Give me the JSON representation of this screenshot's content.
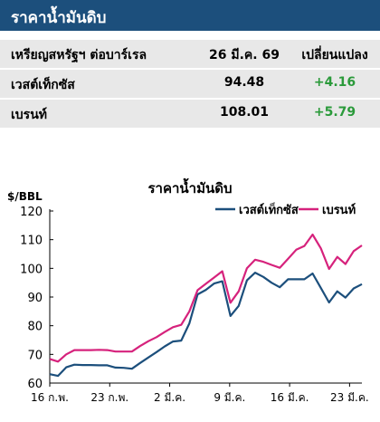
{
  "header": {
    "title": "ราคาน้ำมันดิบ"
  },
  "table": {
    "columns": [
      "เหรียญสหรัฐฯ ต่อบาร์เรล",
      "26 มี.ค. 69",
      "เปลี่ยนแปลง"
    ],
    "rows": [
      {
        "name": "เวสต์เท็กซัส",
        "value": "94.48",
        "change": "+4.16"
      },
      {
        "name": "เบรนท์",
        "value": "108.01",
        "change": "+5.79"
      }
    ]
  },
  "chart_data": {
    "type": "line",
    "title": "ราคาน้ำมันดิบ",
    "ylabel": "$/BBL",
    "ylim": [
      60,
      120
    ],
    "yticks": [
      60,
      70,
      80,
      90,
      100,
      110,
      120
    ],
    "x_tick_labels": [
      "16 ก.พ.",
      "23 ก.พ.",
      "2 มี.ค.",
      "9 มี.ค.",
      "16 มี.ค.",
      "23 มี.ค."
    ],
    "legend_position": "top-right",
    "series": [
      {
        "name": "เวสต์เท็กซัส",
        "color": "#1c4f7c",
        "x": [
          0,
          1,
          2,
          3,
          4,
          5,
          6,
          7,
          8,
          9,
          10,
          11,
          12,
          13,
          14,
          15,
          16,
          17,
          18,
          19,
          20,
          21,
          22,
          23,
          24,
          25,
          26,
          27,
          28,
          29,
          30,
          31,
          32,
          33,
          34,
          35,
          36,
          37,
          38
        ],
        "values": [
          63.1,
          62.5,
          65.5,
          66.4,
          66.3,
          66.3,
          66.2,
          66.2,
          65.4,
          65.3,
          65.0,
          67.0,
          68.9,
          70.8,
          72.8,
          74.5,
          74.8,
          80.8,
          90.9,
          92.5,
          94.7,
          95.5,
          83.4,
          86.9,
          95.8,
          98.5,
          97.0,
          95.0,
          93.4,
          96.2,
          96.2,
          96.2,
          98.2,
          93.2,
          88.1,
          92.0,
          89.8,
          93.0,
          94.48
        ]
      },
      {
        "name": "เบรนท์",
        "color": "#d6227c",
        "x": [
          0,
          1,
          2,
          3,
          4,
          5,
          6,
          7,
          8,
          9,
          10,
          11,
          12,
          13,
          14,
          15,
          16,
          17,
          18,
          19,
          20,
          21,
          22,
          23,
          24,
          25,
          26,
          27,
          28,
          29,
          30,
          31,
          32,
          33,
          34,
          35,
          36,
          37,
          38
        ],
        "values": [
          68.4,
          67.5,
          70.0,
          71.5,
          71.5,
          71.5,
          71.6,
          71.5,
          71.0,
          71.0,
          71.0,
          72.9,
          74.6,
          76.0,
          77.8,
          79.5,
          80.3,
          85.0,
          92.4,
          94.6,
          96.8,
          99.0,
          88.0,
          92.0,
          100.0,
          103.0,
          102.3,
          101.2,
          100.2,
          103.3,
          106.5,
          107.8,
          111.8,
          107.0,
          99.8,
          104.0,
          101.5,
          106.0,
          108.01
        ]
      }
    ]
  }
}
